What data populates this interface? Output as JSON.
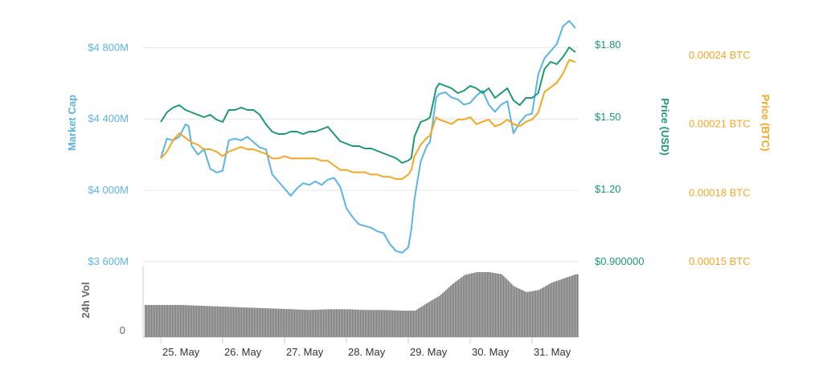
{
  "chart_data": {
    "type": "line",
    "x_ticks": [
      "25. May",
      "26. May",
      "27. May",
      "28. May",
      "29. May",
      "30. May",
      "31. May"
    ],
    "axes": {
      "market_cap": {
        "title": "Market Cap",
        "color": "#5ab4e8",
        "range": [
          3600,
          4950
        ],
        "ticks": [
          {
            "value": 3600,
            "label": "$3 600M"
          },
          {
            "value": 4000,
            "label": "$4 000M"
          },
          {
            "value": 4400,
            "label": "$4 400M"
          },
          {
            "value": 4800,
            "label": "$4 800M"
          }
        ]
      },
      "price_usd": {
        "title": "Price (USD)",
        "color": "#1b9a6c",
        "range": [
          0.9,
          1.9
        ],
        "ticks": [
          {
            "value": 0.9,
            "label": "$0.900000"
          },
          {
            "value": 1.2,
            "label": "$1.20"
          },
          {
            "value": 1.5,
            "label": "$1.50"
          },
          {
            "value": 1.8,
            "label": "$1.80"
          }
        ]
      },
      "price_btc": {
        "title": "Price (BTC)",
        "color": "#f5a623",
        "range": [
          0.00015,
          0.000255
        ],
        "ticks": [
          {
            "value": 0.00015,
            "label": "0.00015 BTC"
          },
          {
            "value": 0.00018,
            "label": "0.00018 BTC"
          },
          {
            "value": 0.00021,
            "label": "0.00021 BTC"
          },
          {
            "value": 0.00024,
            "label": "0.00024 BTC"
          }
        ]
      },
      "volume": {
        "title": "24h Vol",
        "color": "#666666",
        "ticks": [
          {
            "value": 0,
            "label": "0"
          }
        ]
      }
    },
    "series": [
      {
        "axis": "market_cap",
        "x": [
          0,
          0.1,
          0.2,
          0.3,
          0.4,
          0.45,
          0.5,
          0.6,
          0.7,
          0.8,
          0.9,
          1.0,
          1.1,
          1.2,
          1.3,
          1.4,
          1.5,
          1.6,
          1.7,
          1.8,
          1.9,
          2.0,
          2.1,
          2.2,
          2.3,
          2.4,
          2.5,
          2.6,
          2.7,
          2.8,
          2.9,
          3.0,
          3.1,
          3.2,
          3.3,
          3.4,
          3.5,
          3.6,
          3.7,
          3.8,
          3.9,
          4.0,
          4.05,
          4.1,
          4.2,
          4.3,
          4.35,
          4.45,
          4.5,
          4.6,
          4.7,
          4.8,
          4.9,
          5.0,
          5.1,
          5.2,
          5.3,
          5.4,
          5.5,
          5.6,
          5.7,
          5.8,
          5.9,
          6.0,
          6.1,
          6.2,
          6.3,
          6.4,
          6.5,
          6.6,
          6.7
        ],
        "y": [
          4180,
          4290,
          4280,
          4300,
          4370,
          4360,
          4250,
          4200,
          4230,
          4120,
          4100,
          4110,
          4280,
          4290,
          4280,
          4300,
          4270,
          4240,
          4230,
          4090,
          4050,
          4010,
          3970,
          4010,
          4040,
          4030,
          4050,
          4030,
          4060,
          4070,
          4020,
          3900,
          3850,
          3810,
          3800,
          3790,
          3770,
          3760,
          3700,
          3660,
          3650,
          3680,
          3780,
          3950,
          4160,
          4250,
          4270,
          4520,
          4540,
          4550,
          4520,
          4510,
          4480,
          4490,
          4530,
          4560,
          4480,
          4440,
          4480,
          4500,
          4320,
          4380,
          4420,
          4430,
          4650,
          4740,
          4780,
          4820,
          4920,
          4950,
          4910
        ]
      },
      {
        "axis": "price_usd",
        "x": [
          0,
          0.1,
          0.2,
          0.3,
          0.4,
          0.5,
          0.6,
          0.7,
          0.8,
          0.9,
          1.0,
          1.1,
          1.2,
          1.3,
          1.4,
          1.5,
          1.6,
          1.7,
          1.8,
          1.9,
          2.0,
          2.1,
          2.2,
          2.3,
          2.4,
          2.5,
          2.6,
          2.7,
          2.8,
          2.9,
          3.0,
          3.1,
          3.2,
          3.3,
          3.4,
          3.5,
          3.6,
          3.7,
          3.8,
          3.9,
          4.0,
          4.05,
          4.1,
          4.2,
          4.3,
          4.35,
          4.45,
          4.5,
          4.6,
          4.7,
          4.8,
          4.9,
          5.0,
          5.1,
          5.2,
          5.3,
          5.4,
          5.5,
          5.6,
          5.7,
          5.8,
          5.9,
          6.0,
          6.1,
          6.2,
          6.3,
          6.4,
          6.5,
          6.6,
          6.7
        ],
        "y": [
          1.48,
          1.52,
          1.54,
          1.55,
          1.53,
          1.52,
          1.51,
          1.5,
          1.51,
          1.49,
          1.48,
          1.53,
          1.53,
          1.54,
          1.53,
          1.53,
          1.51,
          1.47,
          1.44,
          1.43,
          1.43,
          1.44,
          1.44,
          1.43,
          1.44,
          1.44,
          1.45,
          1.46,
          1.43,
          1.4,
          1.39,
          1.38,
          1.38,
          1.37,
          1.37,
          1.36,
          1.35,
          1.34,
          1.33,
          1.31,
          1.32,
          1.33,
          1.42,
          1.48,
          1.49,
          1.5,
          1.62,
          1.64,
          1.63,
          1.62,
          1.6,
          1.61,
          1.63,
          1.62,
          1.6,
          1.62,
          1.58,
          1.6,
          1.62,
          1.57,
          1.55,
          1.58,
          1.58,
          1.6,
          1.7,
          1.73,
          1.72,
          1.75,
          1.79,
          1.77
        ]
      },
      {
        "axis": "price_btc",
        "x": [
          0,
          0.1,
          0.2,
          0.3,
          0.4,
          0.5,
          0.6,
          0.7,
          0.8,
          0.9,
          1.0,
          1.1,
          1.2,
          1.3,
          1.4,
          1.5,
          1.6,
          1.7,
          1.8,
          1.9,
          2.0,
          2.1,
          2.2,
          2.3,
          2.4,
          2.5,
          2.6,
          2.7,
          2.8,
          2.9,
          3.0,
          3.1,
          3.2,
          3.3,
          3.4,
          3.5,
          3.6,
          3.7,
          3.8,
          3.9,
          4.0,
          4.05,
          4.1,
          4.2,
          4.3,
          4.35,
          4.45,
          4.5,
          4.6,
          4.7,
          4.8,
          4.9,
          5.0,
          5.1,
          5.2,
          5.3,
          5.4,
          5.5,
          5.6,
          5.7,
          5.8,
          5.9,
          6.0,
          6.1,
          6.2,
          6.3,
          6.4,
          6.5,
          6.6,
          6.7
        ],
        "y": [
          0.000195,
          0.000198,
          0.000203,
          0.000206,
          0.000204,
          0.000202,
          0.000201,
          0.000199,
          0.000199,
          0.000198,
          0.000196,
          0.000198,
          0.000199,
          0.0002,
          0.000199,
          0.000199,
          0.000198,
          0.000197,
          0.000195,
          0.000195,
          0.000196,
          0.000195,
          0.000195,
          0.000195,
          0.000195,
          0.000195,
          0.000194,
          0.000194,
          0.000192,
          0.00019,
          0.00019,
          0.000189,
          0.000189,
          0.000189,
          0.000188,
          0.000188,
          0.000187,
          0.000187,
          0.000186,
          0.000186,
          0.000188,
          0.00019,
          0.000196,
          0.000201,
          0.000204,
          0.000205,
          0.000213,
          0.000212,
          0.000211,
          0.00021,
          0.000212,
          0.000212,
          0.000213,
          0.00021,
          0.000211,
          0.000212,
          0.000209,
          0.00021,
          0.000212,
          0.00021,
          0.000209,
          0.000211,
          0.000212,
          0.000215,
          0.000224,
          0.000226,
          0.000228,
          0.000232,
          0.000238,
          0.000237
        ]
      }
    ],
    "volume": {
      "axis": "volume",
      "x": [
        0,
        0.3,
        0.6,
        0.9,
        1.2,
        1.5,
        1.8,
        2.1,
        2.4,
        2.7,
        3.0,
        3.3,
        3.6,
        3.9,
        4.1,
        4.3,
        4.5,
        4.7,
        4.9,
        5.1,
        5.3,
        5.5,
        5.7,
        5.9,
        6.1,
        6.3,
        6.5,
        6.7
      ],
      "y": [
        45,
        45,
        44,
        43,
        42,
        41,
        40,
        39,
        38,
        39,
        39,
        38,
        38,
        37,
        37,
        48,
        58,
        74,
        87,
        91,
        91,
        88,
        71,
        63,
        66,
        76,
        82,
        88
      ]
    }
  }
}
